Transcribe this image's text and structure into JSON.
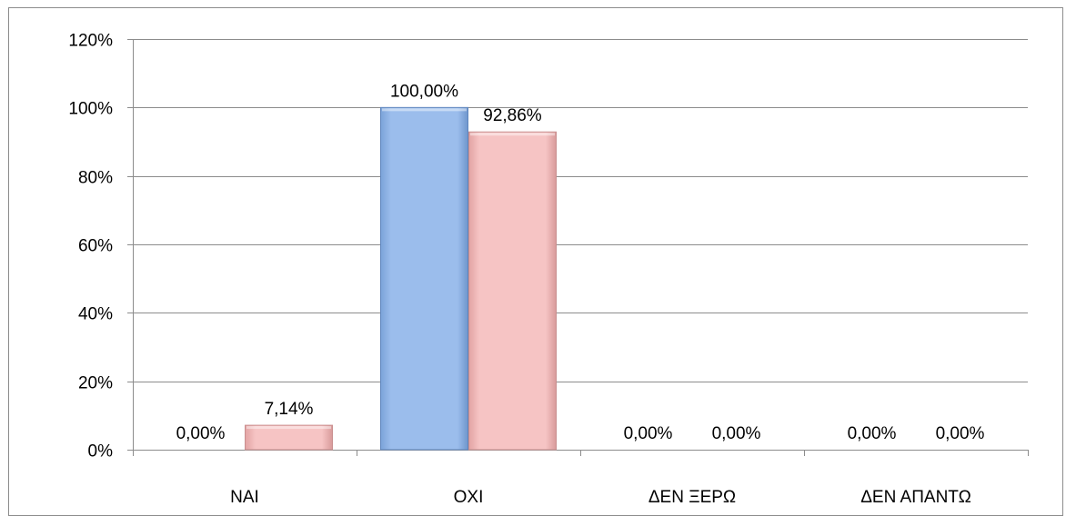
{
  "chart_data": {
    "type": "bar",
    "title": "",
    "xlabel": "",
    "ylabel": "",
    "categories": [
      "ΝΑΙ",
      "ΟΧΙ",
      "ΔΕΝ ΞΕΡΩ",
      "ΔΕΝ ΑΠΑΝΤΩ"
    ],
    "series": [
      {
        "values": [
          0,
          100,
          0,
          0
        ],
        "labels": [
          "0,00%",
          "100,00%",
          "0,00%",
          "0,00%"
        ],
        "color": "#8eb4e3"
      },
      {
        "values": [
          7.14,
          92.86,
          0,
          0
        ],
        "labels": [
          "7,14%",
          "92,86%",
          "0,00%",
          "0,00%"
        ],
        "color": "#f2b8b8"
      }
    ],
    "ylim": [
      0,
      120
    ],
    "yticks": [
      0,
      20,
      40,
      60,
      80,
      100,
      120
    ],
    "ytick_labels": [
      "0%",
      "20%",
      "40%",
      "60%",
      "80%",
      "100%",
      "120%"
    ],
    "grid": true,
    "legend": "none"
  }
}
